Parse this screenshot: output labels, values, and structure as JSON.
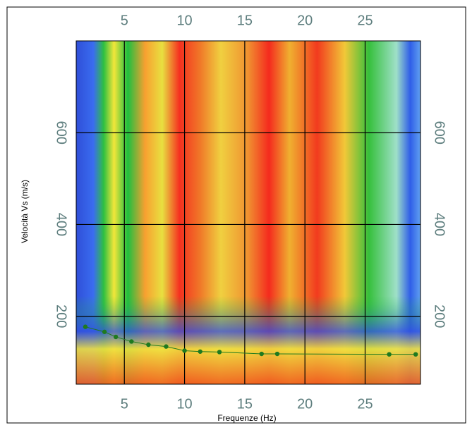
{
  "chart_data": {
    "type": "scatter",
    "x_label": "Frequenze (Hz)",
    "y_label": "Velocità Vs (m/s)",
    "xlim": [
      1,
      29.6
    ],
    "ylim": [
      52,
      800
    ],
    "xticks": [
      5,
      10,
      15,
      20,
      25
    ],
    "yticks": [
      200,
      400,
      600
    ],
    "grid": true,
    "series": [
      {
        "color": "#1f7a1f",
        "x": [
          1.76,
          3.35,
          4.29,
          5.59,
          7.0,
          8.47,
          10.0,
          11.3,
          12.9,
          16.4,
          17.7,
          27.0,
          29.2
        ],
        "values": [
          177,
          166,
          155,
          145,
          138,
          134,
          125,
          123,
          122,
          118,
          118,
          117,
          117
        ]
      }
    ]
  }
}
